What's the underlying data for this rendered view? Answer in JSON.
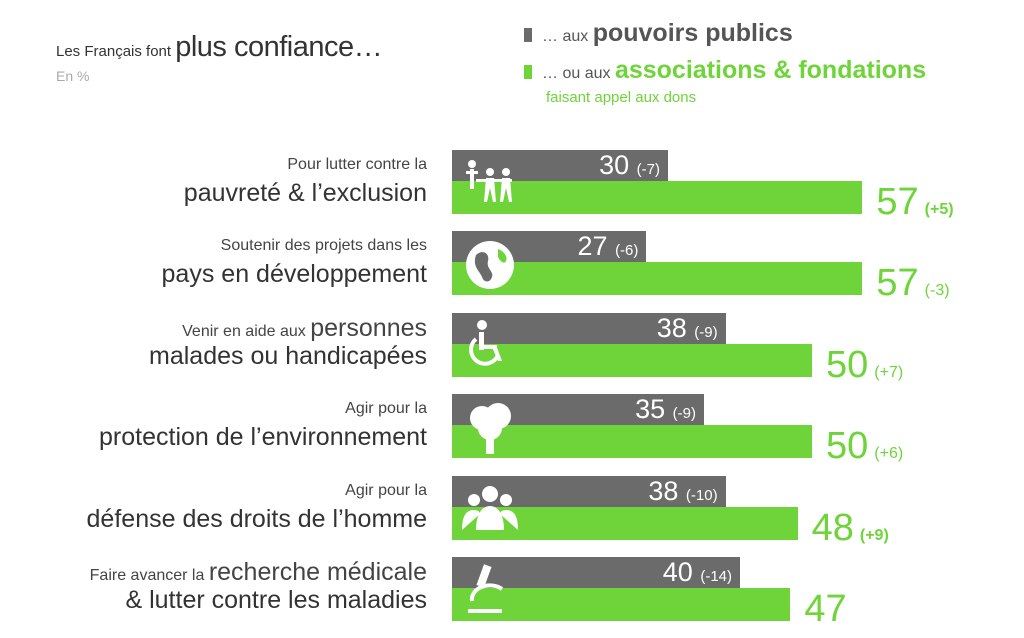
{
  "header": {
    "title_prefix": "Les Français font",
    "title_main": "plus confiance…",
    "unit": "En %"
  },
  "legend": {
    "public_prefix": "… aux",
    "public_label": "pouvoirs publics",
    "assoc_prefix": "… ou aux",
    "assoc_label": "associations & fondations",
    "assoc_sub": "faisant appel aux dons"
  },
  "colors": {
    "public": "#6b6b6b",
    "assoc": "#6fd43a"
  },
  "chart_data": {
    "type": "bar",
    "title": "Les Français font plus confiance…",
    "unit": "En %",
    "series_names": [
      "pouvoirs publics",
      "associations & fondations faisant appel aux dons"
    ],
    "rows": [
      {
        "small": "Pour lutter contre la",
        "small_big": "",
        "large": "pauvreté & l’exclusion",
        "icon": "people-icon",
        "public": 30,
        "public_change": "(-7)",
        "assoc": 57,
        "assoc_change": "(+5)",
        "assoc_change_bold": true
      },
      {
        "small": "Soutenir des projets dans les",
        "small_big": "",
        "large": "pays en développement",
        "icon": "globe-icon",
        "public": 27,
        "public_change": "(-6)",
        "assoc": 57,
        "assoc_change": "(-3)",
        "assoc_change_bold": false
      },
      {
        "small": "Venir en aide aux",
        "small_big": "personnes",
        "large": "malades ou handicapées",
        "icon": "wheelchair-icon",
        "public": 38,
        "public_change": "(-9)",
        "assoc": 50,
        "assoc_change": "(+7)",
        "assoc_change_bold": false
      },
      {
        "small": "Agir pour la",
        "small_big": "",
        "large": "protection de l’environnement",
        "icon": "tree-icon",
        "public": 35,
        "public_change": "(-9)",
        "assoc": 50,
        "assoc_change": "(+6)",
        "assoc_change_bold": false
      },
      {
        "small": "Agir pour la",
        "small_big": "",
        "large": "défense des droits de l’homme",
        "icon": "crowd-icon",
        "public": 38,
        "public_change": "(-10)",
        "assoc": 48,
        "assoc_change": "(+9)",
        "assoc_change_bold": true
      },
      {
        "small": "Faire avancer la",
        "small_big": "recherche médicale",
        "large": "& lutter contre les maladies",
        "icon": "microscope-icon",
        "public": 40,
        "public_change": "(-14)",
        "assoc": 47,
        "assoc_change": "",
        "assoc_change_bold": false
      }
    ]
  }
}
